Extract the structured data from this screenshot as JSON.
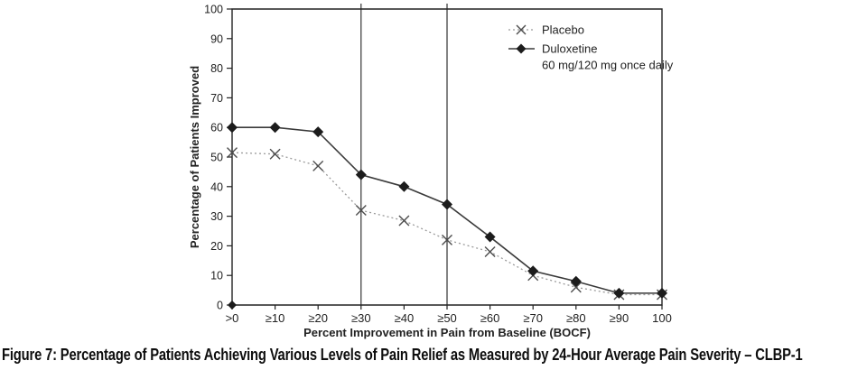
{
  "figure": {
    "caption": "Figure 7: Percentage of Patients Achieving Various Levels of Pain Relief as Measured by 24-Hour Average Pain Severity – CLBP-1"
  },
  "chart_data": {
    "type": "line",
    "title": "",
    "xlabel": "Percent Improvement in Pain from Baseline (BOCF)",
    "ylabel": "Percentage of Patients Improved",
    "categories": [
      ">0",
      "≥10",
      "≥20",
      "≥30",
      "≥40",
      "≥50",
      "≥60",
      "≥70",
      "≥80",
      "≥90",
      "100"
    ],
    "series": [
      {
        "name": "Placebo",
        "marker": "x",
        "line_style": "dotted",
        "values": [
          51.5,
          51,
          47,
          32,
          28.5,
          22,
          18,
          10,
          6,
          3.5,
          3.5
        ]
      },
      {
        "name": "Duloxetine 60 mg/120 mg once daily",
        "marker": "diamond",
        "line_style": "solid",
        "values": [
          60,
          60,
          58.5,
          44,
          40,
          34,
          23,
          11.5,
          8,
          4,
          4
        ]
      }
    ],
    "ylim": [
      0,
      100
    ],
    "ytick_step": 10,
    "grid": "off",
    "plot_frame": "full-box",
    "reference_lines_at": [
      "≥30",
      "≥50"
    ],
    "origin_marker": "diamond",
    "legend": {
      "position": "top-right-inside",
      "entries": [
        {
          "marker": "x",
          "line_style": "dotted",
          "lines": [
            "Placebo"
          ]
        },
        {
          "marker": "diamond",
          "line_style": "solid",
          "lines": [
            "Duloxetine",
            "60 mg/120 mg once daily"
          ]
        }
      ]
    },
    "colors": {
      "axis": "#222222",
      "text": "#222222",
      "reference_line": "#333333",
      "placebo_line": "#9a9a9a",
      "placebo_marker": "#4d4d4d",
      "duloxetine_line": "#3a3a3a",
      "duloxetine_marker": "#1c1c1c"
    }
  }
}
